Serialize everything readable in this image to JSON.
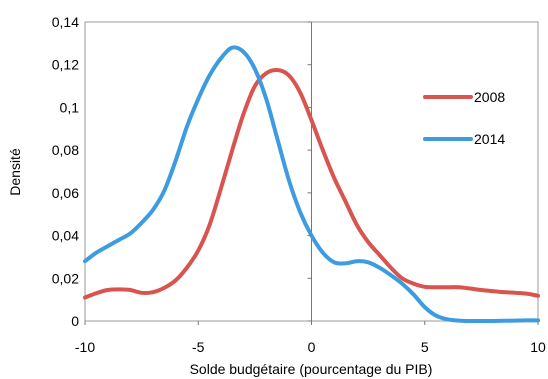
{
  "chart_data": {
    "type": "line",
    "title": "",
    "xlabel": "Solde budgétaire (pourcentage du PIB)",
    "ylabel": "Densité",
    "xlim": [
      -10,
      10
    ],
    "ylim": [
      0,
      0.14
    ],
    "x_ticks": [
      -10,
      -5,
      0,
      5,
      10
    ],
    "x_tick_labels": [
      "-10",
      "-5",
      "0",
      "5",
      "10"
    ],
    "y_ticks": [
      0,
      0.02,
      0.04,
      0.06,
      0.08,
      0.1,
      0.12,
      0.14
    ],
    "y_tick_labels": [
      "0",
      "0,02",
      "0,04",
      "0,06",
      "0,08",
      "0,1",
      "0,12",
      "0,14"
    ],
    "grid": false,
    "legend_position": "right",
    "series": [
      {
        "name": "2008",
        "color": "#d9534f",
        "x": [
          -10,
          -9.5,
          -9,
          -8.5,
          -8,
          -7.5,
          -7,
          -6.5,
          -6,
          -5.5,
          -5,
          -4.5,
          -4,
          -3.5,
          -3,
          -2.5,
          -2,
          -1.5,
          -1,
          -0.5,
          0,
          0.5,
          1,
          1.5,
          2,
          2.5,
          3,
          3.5,
          4,
          4.5,
          5,
          5.5,
          6,
          6.5,
          7,
          7.5,
          8,
          8.5,
          9,
          9.5,
          10
        ],
        "y": [
          0.011,
          0.013,
          0.0145,
          0.0148,
          0.0145,
          0.0132,
          0.0135,
          0.0155,
          0.019,
          0.025,
          0.033,
          0.045,
          0.062,
          0.08,
          0.097,
          0.11,
          0.116,
          0.1175,
          0.115,
          0.107,
          0.094,
          0.08,
          0.067,
          0.056,
          0.045,
          0.037,
          0.031,
          0.025,
          0.02,
          0.0175,
          0.016,
          0.0158,
          0.0158,
          0.0158,
          0.0152,
          0.0145,
          0.014,
          0.0135,
          0.0132,
          0.0128,
          0.0118
        ]
      },
      {
        "name": "2014",
        "color": "#3d9be0",
        "x": [
          -10,
          -9.5,
          -9,
          -8.5,
          -8,
          -7.5,
          -7,
          -6.5,
          -6,
          -5.5,
          -5,
          -4.5,
          -4,
          -3.5,
          -3,
          -2.5,
          -2,
          -1.5,
          -1,
          -0.5,
          0,
          0.5,
          1,
          1.5,
          2,
          2.5,
          3,
          3.5,
          4,
          4.5,
          5,
          5.5,
          6,
          6.5,
          7,
          7.5,
          8,
          8.5,
          9,
          9.5,
          10
        ],
        "y": [
          0.028,
          0.032,
          0.035,
          0.038,
          0.041,
          0.046,
          0.052,
          0.061,
          0.075,
          0.091,
          0.104,
          0.115,
          0.123,
          0.128,
          0.126,
          0.118,
          0.104,
          0.085,
          0.066,
          0.051,
          0.04,
          0.032,
          0.0275,
          0.027,
          0.028,
          0.0275,
          0.025,
          0.0215,
          0.0175,
          0.0125,
          0.0065,
          0.0025,
          0.0008,
          0.0002,
          0.0,
          0.0,
          0.0,
          0.0001,
          0.0002,
          0.0003,
          0.0003
        ]
      }
    ]
  }
}
